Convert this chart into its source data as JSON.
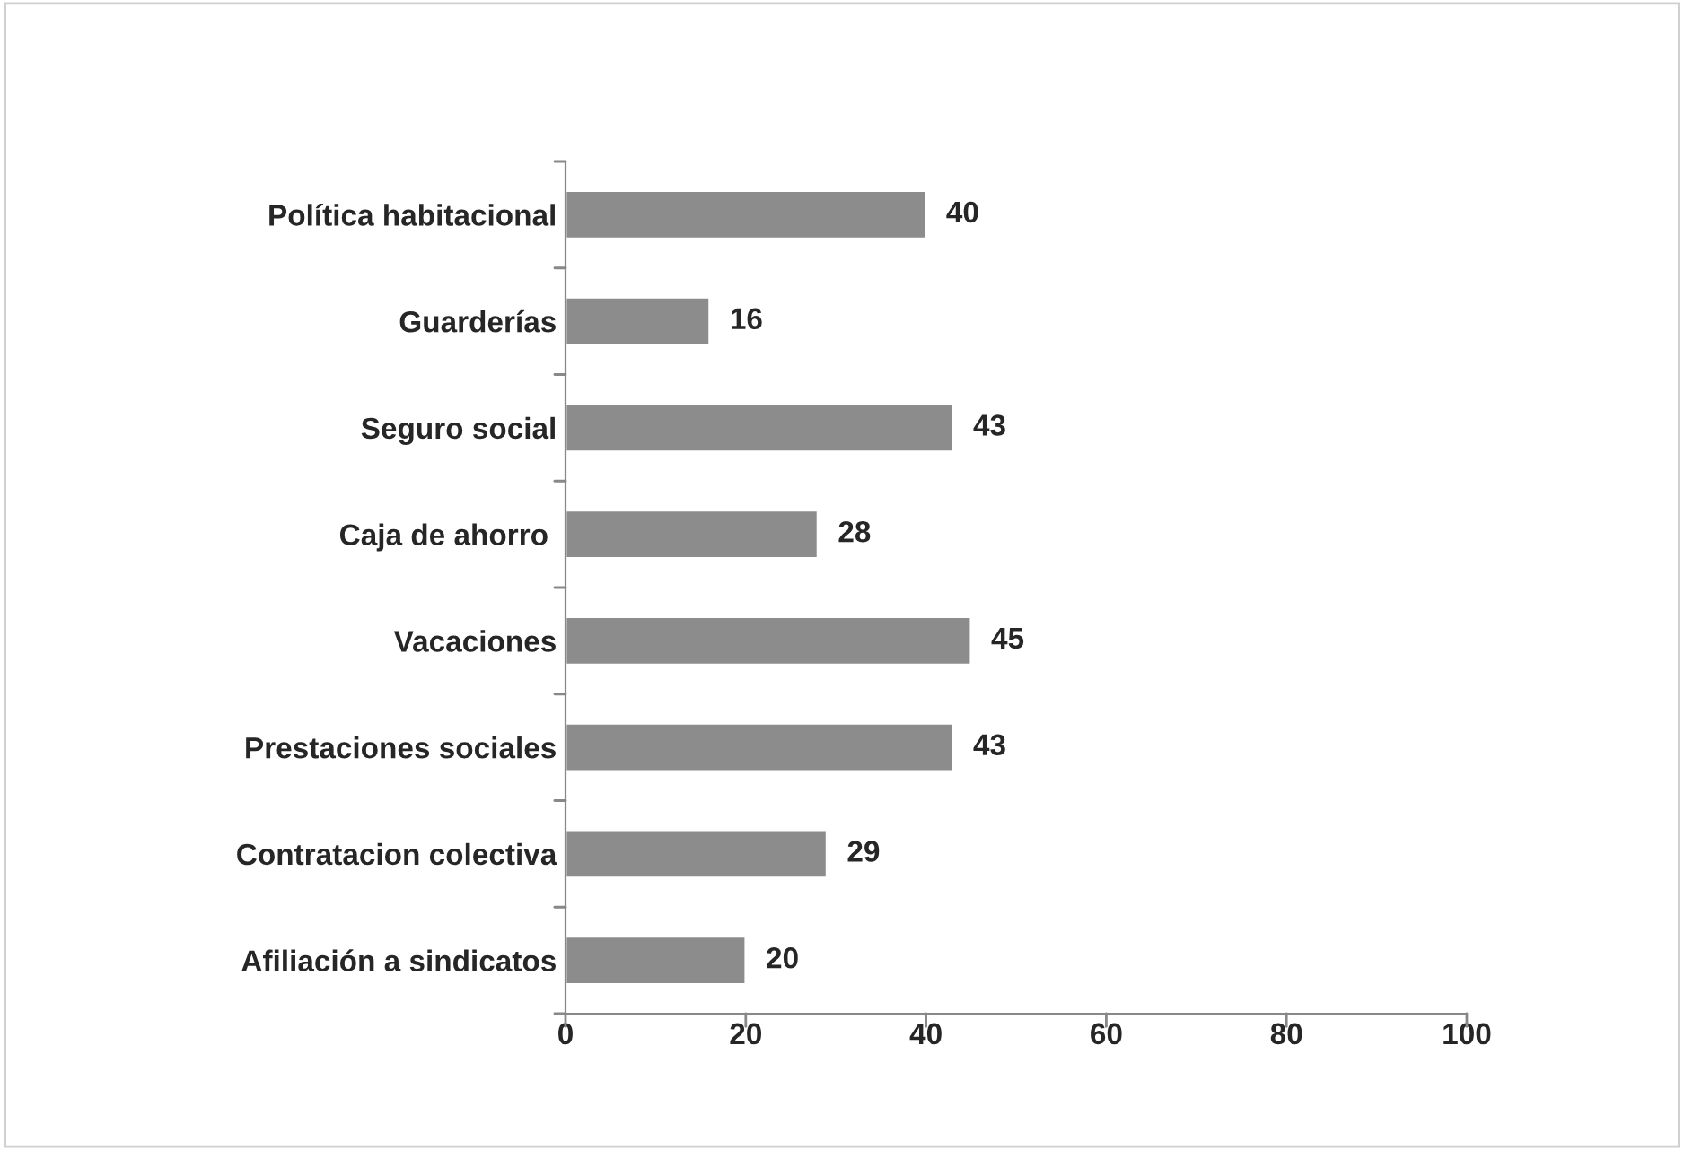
{
  "chart_data": {
    "type": "bar",
    "orientation": "horizontal",
    "categories": [
      "Política habitacional",
      "Guarderías",
      "Seguro social",
      "Caja de ahorro ",
      "Vacaciones",
      "Prestaciones sociales",
      "Contratacion colectiva",
      "Afiliación a sindicatos"
    ],
    "values": [
      40,
      16,
      43,
      28,
      45,
      43,
      29,
      20
    ],
    "color": "#8c8c8c",
    "xlim": [
      0,
      100
    ],
    "xticks": [
      0,
      20,
      40,
      60,
      80,
      100
    ],
    "data_labels": true,
    "grid": false,
    "legend": false
  }
}
